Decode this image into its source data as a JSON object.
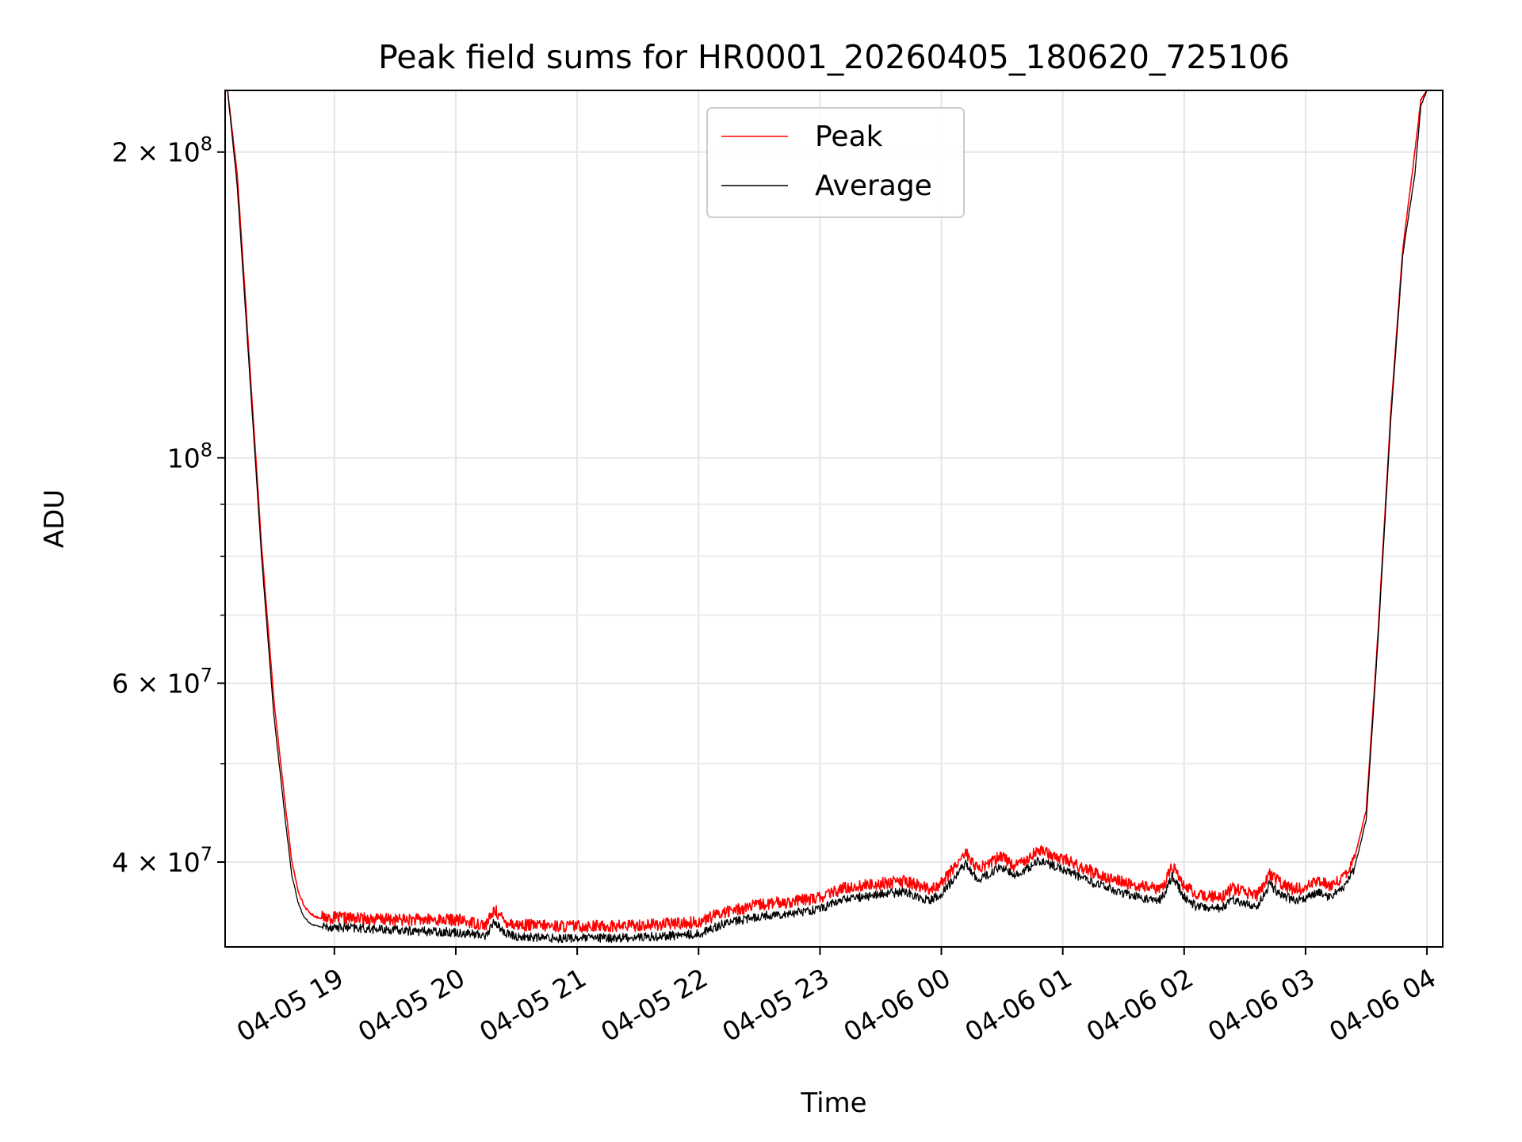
{
  "chart_data": {
    "type": "line",
    "title": "Peak field sums for HR0001_20260405_180620_725106",
    "xlabel": "Time",
    "ylabel": "ADU",
    "yscale": "log",
    "ylim": [
      33000000,
      230000000
    ],
    "xlim_hours": [
      18.1,
      28.13
    ],
    "grid": true,
    "legend_position": "top-center",
    "x_ticks": [
      {
        "hour": 19,
        "label": "04-05 19"
      },
      {
        "hour": 20,
        "label": "04-05 20"
      },
      {
        "hour": 21,
        "label": "04-05 21"
      },
      {
        "hour": 22,
        "label": "04-05 22"
      },
      {
        "hour": 23,
        "label": "04-05 23"
      },
      {
        "hour": 24,
        "label": "04-06 00"
      },
      {
        "hour": 25,
        "label": "04-06 01"
      },
      {
        "hour": 26,
        "label": "04-06 02"
      },
      {
        "hour": 27,
        "label": "04-06 03"
      },
      {
        "hour": 28,
        "label": "04-06 04"
      }
    ],
    "y_major_ticks": [
      {
        "value": 40000000,
        "mantissa": "4",
        "exponent": "7"
      },
      {
        "value": 60000000,
        "mantissa": "6",
        "exponent": "7"
      },
      {
        "value": 100000000,
        "mantissa": "",
        "exponent": "8"
      },
      {
        "value": 200000000,
        "mantissa": "2",
        "exponent": "8"
      }
    ],
    "y_minor_ticks": [
      50000000,
      70000000,
      80000000,
      90000000
    ],
    "series": [
      {
        "name": "Peak",
        "color": "#ff0000",
        "x_hours": [
          18.12,
          18.2,
          18.3,
          18.4,
          18.5,
          18.6,
          18.65,
          18.7,
          18.75,
          18.8,
          18.85,
          18.9,
          19.0,
          19.2,
          19.5,
          19.8,
          20.0,
          20.25,
          20.32,
          20.4,
          20.5,
          20.8,
          21.0,
          21.3,
          21.6,
          22.0,
          22.2,
          22.5,
          22.8,
          23.0,
          23.2,
          23.5,
          23.7,
          23.9,
          24.0,
          24.2,
          24.3,
          24.5,
          24.6,
          24.8,
          25.0,
          25.2,
          25.4,
          25.6,
          25.8,
          25.85,
          25.9,
          26.0,
          26.1,
          26.3,
          26.35,
          26.4,
          26.5,
          26.6,
          26.65,
          26.7,
          26.8,
          26.9,
          27.0,
          27.1,
          27.2,
          27.3,
          27.4,
          27.5,
          27.6,
          27.7,
          27.8,
          27.9,
          27.95,
          28.0
        ],
        "values": [
          230000000,
          190000000,
          125000000,
          82000000,
          58000000,
          45000000,
          40000000,
          37500000,
          36200000,
          35600000,
          35300000,
          35200000,
          35150000,
          35100000,
          35000000,
          35000000,
          35000000,
          34600000,
          35800000,
          34900000,
          34600000,
          34500000,
          34500000,
          34500000,
          34600000,
          34800000,
          35600000,
          36200000,
          36500000,
          36800000,
          37600000,
          38000000,
          38200000,
          37500000,
          38000000,
          40800000,
          39200000,
          40500000,
          39500000,
          41000000,
          40200000,
          39200000,
          38400000,
          37800000,
          37500000,
          38200000,
          39600000,
          37800000,
          37000000,
          36800000,
          37200000,
          37600000,
          37200000,
          37000000,
          37800000,
          38800000,
          38000000,
          37500000,
          37600000,
          38200000,
          37800000,
          38400000,
          40200000,
          45000000,
          68000000,
          110000000,
          160000000,
          200000000,
          225000000,
          230000000
        ]
      },
      {
        "name": "Average",
        "color": "#000000",
        "x_hours": [
          18.12,
          18.2,
          18.3,
          18.4,
          18.5,
          18.6,
          18.65,
          18.7,
          18.75,
          18.8,
          18.85,
          18.9,
          19.0,
          19.2,
          19.5,
          19.8,
          20.0,
          20.25,
          20.32,
          20.4,
          20.5,
          20.8,
          21.0,
          21.3,
          21.6,
          22.0,
          22.2,
          22.5,
          22.8,
          23.0,
          23.2,
          23.5,
          23.7,
          23.9,
          24.0,
          24.2,
          24.3,
          24.5,
          24.6,
          24.8,
          25.0,
          25.2,
          25.4,
          25.6,
          25.8,
          25.85,
          25.9,
          26.0,
          26.1,
          26.3,
          26.35,
          26.4,
          26.5,
          26.6,
          26.65,
          26.7,
          26.8,
          26.9,
          27.0,
          27.1,
          27.2,
          27.3,
          27.4,
          27.5,
          27.6,
          27.7,
          27.8,
          27.9,
          27.95,
          28.0
        ],
        "values": [
          230000000,
          185000000,
          122000000,
          80000000,
          56000000,
          43500000,
          38800000,
          36500000,
          35300000,
          34800000,
          34600000,
          34500000,
          34450000,
          34350000,
          34200000,
          34100000,
          34050000,
          33800000,
          34900000,
          34000000,
          33700000,
          33600000,
          33600000,
          33600000,
          33700000,
          33900000,
          34700000,
          35300000,
          35600000,
          35900000,
          36700000,
          37100000,
          37300000,
          36600000,
          37100000,
          39800000,
          38300000,
          39500000,
          38600000,
          40000000,
          39300000,
          38300000,
          37500000,
          36900000,
          36600000,
          37300000,
          38700000,
          36900000,
          36100000,
          35900000,
          36300000,
          36700000,
          36300000,
          36100000,
          36900000,
          37900000,
          37100000,
          36600000,
          36700000,
          37300000,
          36900000,
          37500000,
          39300000,
          44000000,
          67000000,
          108000000,
          158000000,
          190000000,
          222000000,
          230000000
        ]
      }
    ]
  }
}
